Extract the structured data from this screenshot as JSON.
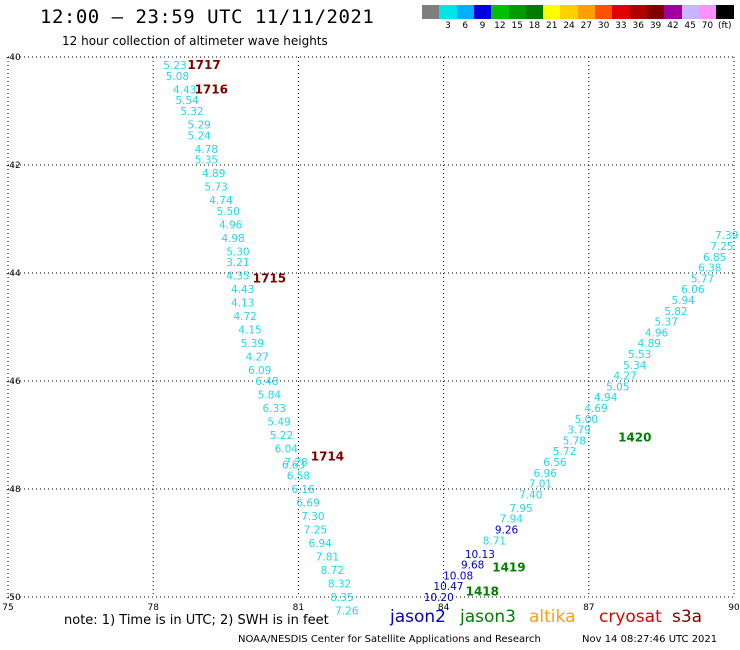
{
  "header": {
    "title": "12:00 – 23:59 UTC 11/11/2021",
    "subtitle": "12 hour collection of altimeter wave heights"
  },
  "colorbar": {
    "unit": "(ft)",
    "swatches": [
      {
        "color": "#7f7f7f",
        "label": ""
      },
      {
        "color": "#00e5e5",
        "label": "3"
      },
      {
        "color": "#00b0ff",
        "label": "6"
      },
      {
        "color": "#0000e0",
        "label": "9"
      },
      {
        "color": "#00c000",
        "label": "12"
      },
      {
        "color": "#009a00",
        "label": "15"
      },
      {
        "color": "#007a00",
        "label": "18"
      },
      {
        "color": "#ffff00",
        "label": "21"
      },
      {
        "color": "#ffd000",
        "label": "24"
      },
      {
        "color": "#ffa000",
        "label": "27"
      },
      {
        "color": "#ff5000",
        "label": "30"
      },
      {
        "color": "#e00000",
        "label": "33"
      },
      {
        "color": "#b00000",
        "label": "36"
      },
      {
        "color": "#800000",
        "label": "39"
      },
      {
        "color": "#a000a0",
        "label": "42"
      },
      {
        "color": "#c8b4ff",
        "label": "45"
      },
      {
        "color": "#ff90ff",
        "label": "70"
      },
      {
        "color": "#000000",
        "label": ""
      }
    ]
  },
  "map": {
    "lon_range": [
      75,
      90
    ],
    "lat_range": [
      -50,
      -40
    ],
    "lon_ticks": [
      "75",
      "78",
      "81",
      "84",
      "87",
      "90"
    ],
    "lat_ticks": [
      "-40",
      "-42",
      "-44",
      "-46",
      "-48",
      "-50"
    ],
    "grid": "dotted",
    "colors": {
      "cyan": "#22d8e8",
      "blue": "#0000c8",
      "tag_red": "#800000",
      "tag_green": "#008000"
    },
    "pass_tags": [
      {
        "text": "1717",
        "lon": 79.05,
        "lat": -40.15,
        "color": "tag_red"
      },
      {
        "text": "1716",
        "lon": 79.2,
        "lat": -40.6,
        "color": "tag_red"
      },
      {
        "text": "1715",
        "lon": 80.4,
        "lat": -44.1,
        "color": "tag_red"
      },
      {
        "text": "1714",
        "lon": 81.6,
        "lat": -47.4,
        "color": "tag_red"
      },
      {
        "text": "1420",
        "lon": 87.95,
        "lat": -47.05,
        "color": "tag_green"
      },
      {
        "text": "1419",
        "lon": 85.35,
        "lat": -49.45,
        "color": "tag_green"
      },
      {
        "text": "1418",
        "lon": 84.8,
        "lat": -49.9,
        "color": "tag_green"
      }
    ],
    "track_west": {
      "color": "cyan",
      "points": [
        {
          "v": "5.23",
          "lon": 78.45,
          "lat": -40.15
        },
        {
          "v": "5.08",
          "lon": 78.5,
          "lat": -40.35
        },
        {
          "v": "4.43",
          "lon": 78.65,
          "lat": -40.6
        },
        {
          "v": "5.54",
          "lon": 78.7,
          "lat": -40.8
        },
        {
          "v": "5.32",
          "lon": 78.8,
          "lat": -41.0
        },
        {
          "v": "5.29",
          "lon": 78.95,
          "lat": -41.25
        },
        {
          "v": "5.24",
          "lon": 78.95,
          "lat": -41.45
        },
        {
          "v": "4.78",
          "lon": 79.1,
          "lat": -41.7
        },
        {
          "v": "5.35",
          "lon": 79.1,
          "lat": -41.9
        },
        {
          "v": "4.89",
          "lon": 79.25,
          "lat": -42.15
        },
        {
          "v": "5.73",
          "lon": 79.3,
          "lat": -42.4
        },
        {
          "v": "4.74",
          "lon": 79.4,
          "lat": -42.65
        },
        {
          "v": "5.50",
          "lon": 79.55,
          "lat": -42.85
        },
        {
          "v": "4.96",
          "lon": 79.6,
          "lat": -43.1
        },
        {
          "v": "4.98",
          "lon": 79.65,
          "lat": -43.35
        },
        {
          "v": "5.30",
          "lon": 79.75,
          "lat": -43.6
        },
        {
          "v": "3.21",
          "lon": 79.75,
          "lat": -43.8
        },
        {
          "v": "4.35",
          "lon": 79.75,
          "lat": -44.05
        },
        {
          "v": "4.43",
          "lon": 79.85,
          "lat": -44.3
        },
        {
          "v": "4.13",
          "lon": 79.85,
          "lat": -44.55
        },
        {
          "v": "4.72",
          "lon": 79.9,
          "lat": -44.8
        },
        {
          "v": "4.15",
          "lon": 80.0,
          "lat": -45.05
        },
        {
          "v": "5.39",
          "lon": 80.05,
          "lat": -45.3
        },
        {
          "v": "4.27",
          "lon": 80.15,
          "lat": -45.55
        },
        {
          "v": "6.09",
          "lon": 80.2,
          "lat": -45.8
        },
        {
          "v": "6.48",
          "lon": 80.35,
          "lat": -46.0
        },
        {
          "v": "5.84",
          "lon": 80.4,
          "lat": -46.25
        },
        {
          "v": "6.33",
          "lon": 80.5,
          "lat": -46.5
        },
        {
          "v": "5.49",
          "lon": 80.6,
          "lat": -46.75
        },
        {
          "v": "5.22",
          "lon": 80.65,
          "lat": -47.0
        },
        {
          "v": "6.04",
          "lon": 80.75,
          "lat": -47.25
        },
        {
          "v": "7.28",
          "lon": 80.95,
          "lat": -47.5
        },
        {
          "v": "6.63",
          "lon": 80.9,
          "lat": -47.55
        },
        {
          "v": "6.58",
          "lon": 81.0,
          "lat": -47.75
        },
        {
          "v": "6.16",
          "lon": 81.1,
          "lat": -48.0
        },
        {
          "v": "6.69",
          "lon": 81.2,
          "lat": -48.25
        },
        {
          "v": "7.30",
          "lon": 81.3,
          "lat": -48.5
        },
        {
          "v": "7.25",
          "lon": 81.35,
          "lat": -48.75
        },
        {
          "v": "6.94",
          "lon": 81.45,
          "lat": -49.0
        },
        {
          "v": "7.81",
          "lon": 81.6,
          "lat": -49.25
        },
        {
          "v": "8.72",
          "lon": 81.7,
          "lat": -49.5
        },
        {
          "v": "8.32",
          "lon": 81.85,
          "lat": -49.75
        },
        {
          "v": "8.35",
          "lon": 81.9,
          "lat": -50.0
        },
        {
          "v": "7.26",
          "lon": 82.0,
          "lat": -50.25
        }
      ]
    },
    "track_east": {
      "color": "cyan",
      "points": [
        {
          "v": "10.20",
          "lon": 83.9,
          "lat": -50.0,
          "c": "blue"
        },
        {
          "v": "10.47",
          "lon": 84.1,
          "lat": -49.8,
          "c": "blue"
        },
        {
          "v": "10.08",
          "lon": 84.3,
          "lat": -49.6,
          "c": "blue"
        },
        {
          "v": "9.68",
          "lon": 84.6,
          "lat": -49.4,
          "c": "blue"
        },
        {
          "v": "10.13",
          "lon": 84.75,
          "lat": -49.2,
          "c": "blue"
        },
        {
          "v": "8.71",
          "lon": 85.05,
          "lat": -48.95
        },
        {
          "v": "9.26",
          "lon": 85.3,
          "lat": -48.75,
          "c": "blue"
        },
        {
          "v": "7.94",
          "lon": 85.4,
          "lat": -48.55
        },
        {
          "v": "7.95",
          "lon": 85.6,
          "lat": -48.35
        },
        {
          "v": "7.40",
          "lon": 85.8,
          "lat": -48.1
        },
        {
          "v": "7.01",
          "lon": 86.0,
          "lat": -47.9
        },
        {
          "v": "6.96",
          "lon": 86.1,
          "lat": -47.7
        },
        {
          "v": "6.56",
          "lon": 86.3,
          "lat": -47.5
        },
        {
          "v": "5.72",
          "lon": 86.5,
          "lat": -47.3
        },
        {
          "v": "5.78",
          "lon": 86.7,
          "lat": -47.1
        },
        {
          "v": "3.79",
          "lon": 86.8,
          "lat": -46.9
        },
        {
          "v": "5.00",
          "lon": 86.95,
          "lat": -46.7
        },
        {
          "v": "4.69",
          "lon": 87.15,
          "lat": -46.5
        },
        {
          "v": "4.94",
          "lon": 87.35,
          "lat": -46.3
        },
        {
          "v": "5.05",
          "lon": 87.6,
          "lat": -46.1
        },
        {
          "v": "4.27",
          "lon": 87.75,
          "lat": -45.9
        },
        {
          "v": "5.34",
          "lon": 87.95,
          "lat": -45.7
        },
        {
          "v": "5.53",
          "lon": 88.05,
          "lat": -45.5
        },
        {
          "v": "4.89",
          "lon": 88.25,
          "lat": -45.3
        },
        {
          "v": "4.96",
          "lon": 88.4,
          "lat": -45.1
        },
        {
          "v": "5.37",
          "lon": 88.6,
          "lat": -44.9
        },
        {
          "v": "5.82",
          "lon": 88.8,
          "lat": -44.7
        },
        {
          "v": "5.94",
          "lon": 88.95,
          "lat": -44.5
        },
        {
          "v": "6.06",
          "lon": 89.15,
          "lat": -44.3
        },
        {
          "v": "5.77",
          "lon": 89.35,
          "lat": -44.1
        },
        {
          "v": "6.38",
          "lon": 89.5,
          "lat": -43.9
        },
        {
          "v": "6.85",
          "lon": 89.6,
          "lat": -43.7
        },
        {
          "v": "7.25",
          "lon": 89.75,
          "lat": -43.5
        },
        {
          "v": "7.39",
          "lon": 89.85,
          "lat": -43.3
        }
      ]
    }
  },
  "footer": {
    "note": "note: 1) Time is in UTC; 2) SWH is in feet",
    "legend": [
      {
        "name": "jason2",
        "color": "#0000c8"
      },
      {
        "name": "jason3",
        "color": "#008000"
      },
      {
        "name": "altika",
        "color": "#ffa000"
      },
      {
        "name": "cryosat",
        "color": "#e00000"
      },
      {
        "name": "s3a",
        "color": "#800000"
      }
    ],
    "credit": "NOAA/NESDIS Center for Satellite Applications and Research",
    "timestamp": "Nov 14 08:27:46 UTC 2021"
  }
}
